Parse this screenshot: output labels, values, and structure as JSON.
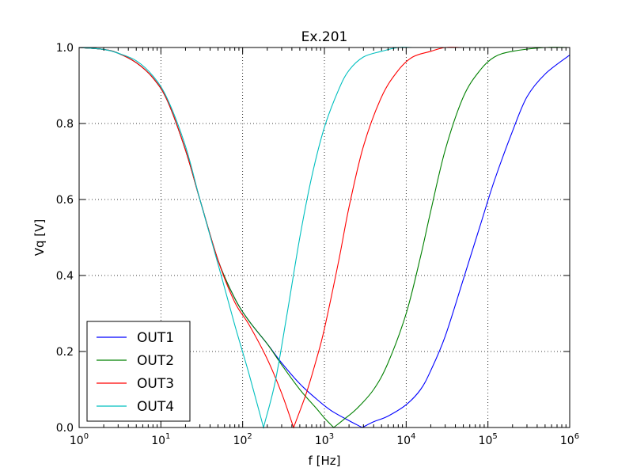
{
  "chart_data": {
    "type": "line",
    "title": "Ex.201",
    "xlabel": "f [Hz]",
    "ylabel": "Vq [V]",
    "xscale": "log",
    "xlim": [
      1,
      1000000
    ],
    "ylim": [
      0,
      1.0
    ],
    "grid": true,
    "legend_position": "lower-left",
    "xticks": [
      {
        "value": 1,
        "base": "10",
        "exp": "0"
      },
      {
        "value": 10,
        "base": "10",
        "exp": "1"
      },
      {
        "value": 100,
        "base": "10",
        "exp": "2"
      },
      {
        "value": 1000,
        "base": "10",
        "exp": "3"
      },
      {
        "value": 10000,
        "base": "10",
        "exp": "4"
      },
      {
        "value": 100000,
        "base": "10",
        "exp": "5"
      },
      {
        "value": 1000000,
        "base": "10",
        "exp": "6"
      }
    ],
    "yticks": [
      {
        "value": 0.0,
        "label": "0.0"
      },
      {
        "value": 0.2,
        "label": "0.2"
      },
      {
        "value": 0.4,
        "label": "0.4"
      },
      {
        "value": 0.6,
        "label": "0.6"
      },
      {
        "value": 0.8,
        "label": "0.8"
      },
      {
        "value": 1.0,
        "label": "1.0"
      }
    ],
    "series": [
      {
        "name": "OUT1",
        "color": "#0000ff",
        "x": [
          1,
          2,
          3,
          5,
          8,
          12,
          20,
          30,
          50,
          80,
          120,
          200,
          300,
          500,
          800,
          1200,
          2000,
          2900,
          4000,
          6000,
          10000,
          15000,
          20000,
          30000,
          50000,
          80000,
          120000,
          200000,
          300000,
          500000,
          1000000
        ],
        "y": [
          1.0,
          0.995,
          0.985,
          0.96,
          0.92,
          0.86,
          0.73,
          0.6,
          0.44,
          0.34,
          0.28,
          0.22,
          0.17,
          0.115,
          0.075,
          0.045,
          0.018,
          0.0,
          0.015,
          0.03,
          0.06,
          0.1,
          0.15,
          0.24,
          0.39,
          0.53,
          0.65,
          0.78,
          0.87,
          0.93,
          0.98
        ]
      },
      {
        "name": "OUT2",
        "color": "#008000",
        "x": [
          1,
          2,
          3,
          5,
          8,
          12,
          20,
          30,
          50,
          80,
          120,
          200,
          300,
          500,
          800,
          1000,
          1300,
          1700,
          2500,
          4000,
          6000,
          10000,
          15000,
          20000,
          30000,
          50000,
          80000,
          120000,
          200000,
          500000,
          1000000
        ],
        "y": [
          1.0,
          0.995,
          0.985,
          0.96,
          0.92,
          0.86,
          0.73,
          0.6,
          0.44,
          0.34,
          0.28,
          0.22,
          0.165,
          0.1,
          0.05,
          0.025,
          0.0,
          0.02,
          0.05,
          0.1,
          0.17,
          0.3,
          0.45,
          0.57,
          0.73,
          0.87,
          0.94,
          0.975,
          0.99,
          1.0,
          1.0
        ]
      },
      {
        "name": "OUT3",
        "color": "#ff0000",
        "x": [
          1,
          2,
          3,
          5,
          8,
          12,
          20,
          30,
          50,
          80,
          120,
          200,
          300,
          420,
          600,
          800,
          1000,
          1500,
          2000,
          3000,
          5000,
          8000,
          12000,
          20000,
          30000,
          50000,
          100000,
          300000,
          1000000
        ],
        "y": [
          1.0,
          0.995,
          0.985,
          0.96,
          0.92,
          0.86,
          0.73,
          0.6,
          0.44,
          0.33,
          0.27,
          0.18,
          0.09,
          0.0,
          0.09,
          0.18,
          0.26,
          0.44,
          0.58,
          0.74,
          0.87,
          0.94,
          0.975,
          0.99,
          1.0,
          1.0,
          1.0,
          1.0,
          1.0
        ]
      },
      {
        "name": "OUT4",
        "color": "#00bfbf",
        "x": [
          1,
          2,
          3,
          5,
          8,
          12,
          20,
          30,
          50,
          80,
          120,
          180,
          250,
          350,
          500,
          700,
          1000,
          1500,
          2000,
          3000,
          5000,
          8000,
          12000,
          20000,
          50000,
          100000,
          1000000
        ],
        "y": [
          1.0,
          0.995,
          0.985,
          0.965,
          0.925,
          0.865,
          0.74,
          0.6,
          0.43,
          0.27,
          0.14,
          0.0,
          0.12,
          0.3,
          0.5,
          0.66,
          0.79,
          0.89,
          0.94,
          0.975,
          0.99,
          1.0,
          1.0,
          1.0,
          1.0,
          1.0,
          1.0
        ]
      }
    ]
  }
}
